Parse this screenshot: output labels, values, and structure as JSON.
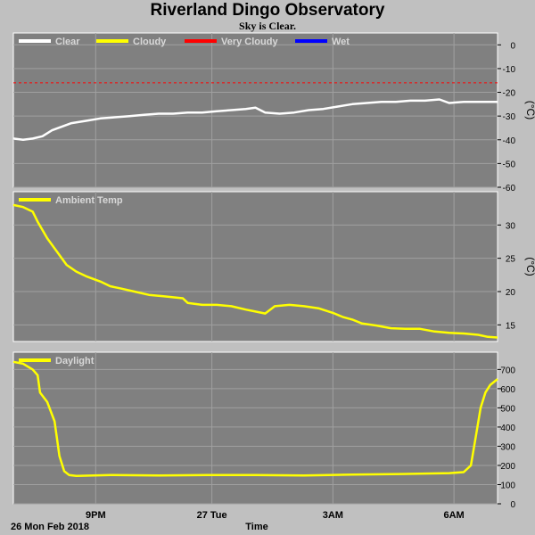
{
  "header": {
    "title": "Riverland Dingo Observatory",
    "subtitle": "Sky is Clear."
  },
  "footer": {
    "date": "26 Mon Feb 2018",
    "xlabel": "Time"
  },
  "colors": {
    "background": "#c0c0c0",
    "panel": "#808080",
    "grid": "#a0a0a0",
    "clear": "#ffffff",
    "cloudy": "#ffff00",
    "very_cloudy": "#ff0000",
    "wet": "#0000ff"
  },
  "chart_data": [
    {
      "type": "line",
      "name": "sky-temperature",
      "ylabel": "(°C)",
      "ylim": [
        -60,
        5
      ],
      "yticks": [
        0,
        -10,
        -20,
        -30,
        -40,
        -50,
        -60
      ],
      "legend": [
        "Clear",
        "Cloudy",
        "Very Cloudy",
        "Wet"
      ],
      "legend_placement": "top-left",
      "threshold_very_cloudy": -16,
      "xlim": [
        0,
        1
      ],
      "series": [
        {
          "name": "Clear",
          "x": [
            0.0,
            0.02,
            0.04,
            0.06,
            0.08,
            0.1,
            0.12,
            0.15,
            0.18,
            0.21,
            0.24,
            0.27,
            0.3,
            0.33,
            0.36,
            0.39,
            0.42,
            0.45,
            0.48,
            0.5,
            0.52,
            0.55,
            0.58,
            0.61,
            0.64,
            0.67,
            0.7,
            0.73,
            0.76,
            0.79,
            0.82,
            0.85,
            0.88,
            0.9,
            0.93,
            0.96,
            1.0
          ],
          "y": [
            -39.5,
            -40,
            -39.5,
            -38.5,
            -36,
            -34.5,
            -33,
            -32,
            -31,
            -30.5,
            -30,
            -29.5,
            -29,
            -29,
            -28.5,
            -28.5,
            -28,
            -27.5,
            -27,
            -26.5,
            -28.5,
            -29,
            -28.5,
            -27.5,
            -27,
            -26,
            -25,
            -24.5,
            -24,
            -24,
            -23.5,
            -23.5,
            -23,
            -24.5,
            -24,
            -24,
            -24
          ]
        }
      ]
    },
    {
      "type": "line",
      "name": "ambient-temp",
      "ylabel": "(°C)",
      "ylim": [
        12.5,
        35
      ],
      "yticks": [
        15,
        20,
        25,
        30
      ],
      "legend": [
        "Ambient Temp"
      ],
      "legend_placement": "top-left",
      "xlim": [
        0,
        1
      ],
      "series": [
        {
          "name": "Ambient Temp",
          "x": [
            0.0,
            0.02,
            0.04,
            0.05,
            0.07,
            0.09,
            0.11,
            0.13,
            0.15,
            0.18,
            0.2,
            0.22,
            0.25,
            0.28,
            0.31,
            0.35,
            0.36,
            0.39,
            0.42,
            0.45,
            0.48,
            0.5,
            0.52,
            0.54,
            0.57,
            0.6,
            0.63,
            0.66,
            0.68,
            0.7,
            0.72,
            0.75,
            0.78,
            0.81,
            0.84,
            0.87,
            0.9,
            0.93,
            0.96,
            0.98,
            1.0
          ],
          "y": [
            33,
            32.7,
            32,
            30.5,
            28,
            26,
            24,
            23,
            22.3,
            21.5,
            20.8,
            20.5,
            20,
            19.5,
            19.3,
            19,
            18.3,
            18,
            18,
            17.8,
            17.3,
            17,
            16.7,
            17.8,
            18,
            17.8,
            17.5,
            16.8,
            16.2,
            15.8,
            15.2,
            14.9,
            14.5,
            14.4,
            14.4,
            14,
            13.8,
            13.7,
            13.5,
            13.2,
            13.1
          ]
        }
      ]
    },
    {
      "type": "line",
      "name": "daylight",
      "ylabel": "",
      "ylim": [
        0,
        790
      ],
      "yticks": [
        0,
        100,
        200,
        300,
        400,
        500,
        600,
        700
      ],
      "legend": [
        "Daylight"
      ],
      "legend_placement": "top-left",
      "xlim": [
        0,
        1
      ],
      "xticks": [
        {
          "label": "9PM",
          "x": 0.17
        },
        {
          "label": "27 Tue",
          "x": 0.41
        },
        {
          "label": "3AM",
          "x": 0.66
        },
        {
          "label": "6AM",
          "x": 0.91
        }
      ],
      "series": [
        {
          "name": "Daylight",
          "x": [
            0.0,
            0.02,
            0.04,
            0.05,
            0.055,
            0.07,
            0.085,
            0.095,
            0.105,
            0.115,
            0.13,
            0.2,
            0.3,
            0.4,
            0.5,
            0.6,
            0.7,
            0.8,
            0.9,
            0.93,
            0.945,
            0.955,
            0.965,
            0.975,
            0.985,
            1.0
          ],
          "y": [
            740,
            730,
            700,
            670,
            580,
            530,
            430,
            250,
            170,
            150,
            145,
            150,
            148,
            150,
            150,
            148,
            152,
            155,
            160,
            165,
            200,
            350,
            500,
            580,
            620,
            650
          ]
        }
      ]
    }
  ]
}
